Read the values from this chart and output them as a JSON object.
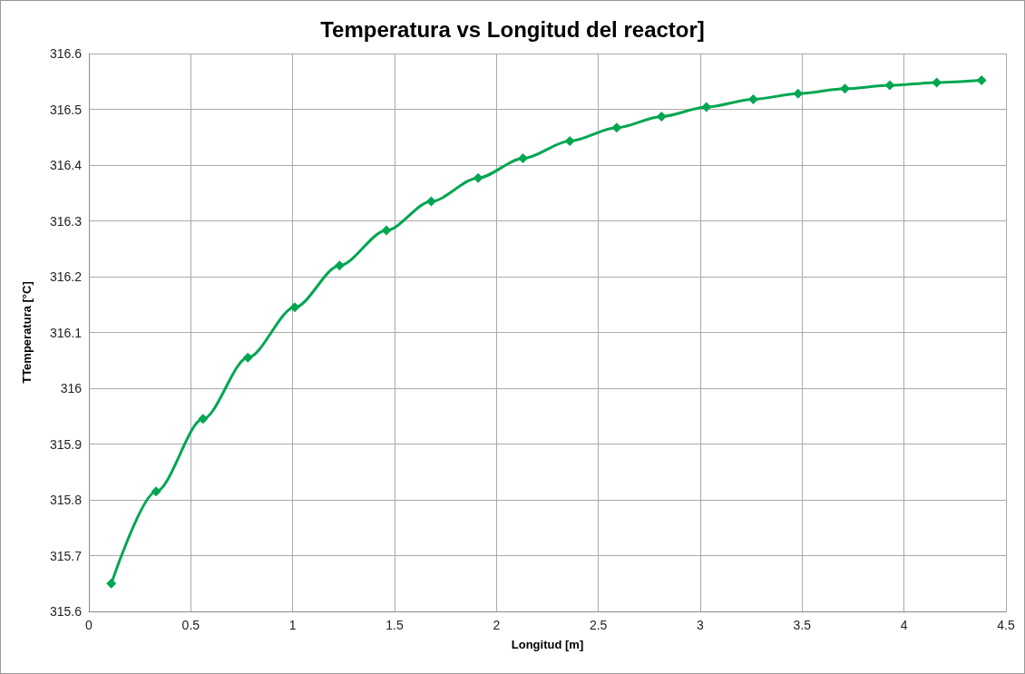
{
  "chart_data": {
    "type": "line",
    "title": "Temperatura vs Longitud del reactor]",
    "xlabel": "Longitud [m]",
    "ylabel": "TTemperatura [°C]",
    "series": [
      {
        "color": "#00a651",
        "x": [
          0.11,
          0.33,
          0.56,
          0.78,
          1.01,
          1.23,
          1.46,
          1.68,
          1.91,
          2.13,
          2.36,
          2.59,
          2.81,
          3.03,
          3.26,
          3.48,
          3.71,
          3.93,
          4.16,
          4.38
        ],
        "values": [
          315.65,
          315.815,
          315.945,
          316.055,
          316.145,
          316.22,
          316.283,
          316.335,
          316.377,
          316.412,
          316.443,
          316.467,
          316.487,
          316.504,
          316.518,
          316.528,
          316.537,
          316.543,
          316.548,
          316.552
        ]
      }
    ],
    "xlim": [
      0,
      4.5
    ],
    "xticks": [
      0,
      0.5,
      1,
      1.5,
      2,
      2.5,
      3,
      3.5,
      4,
      4.5
    ],
    "ylim": [
      315.6,
      316.6
    ],
    "yticks": [
      315.6,
      315.7,
      315.8,
      315.9,
      316,
      316.1,
      316.2,
      316.3,
      316.4,
      316.5,
      316.6
    ],
    "grid": true,
    "marker": "diamond",
    "line_style": "solid"
  }
}
